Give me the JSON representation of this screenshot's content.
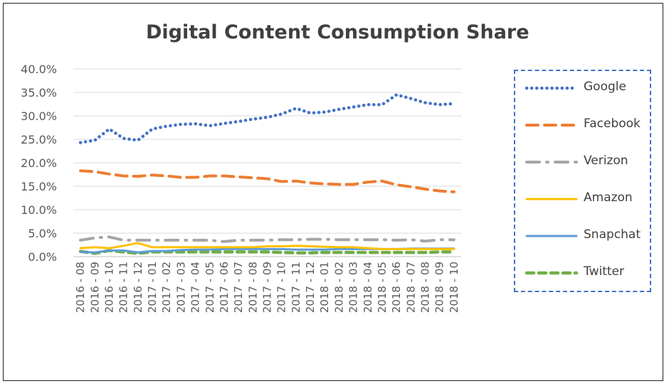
{
  "chart_data": {
    "type": "line",
    "title": "Digital Content Consumption Share",
    "xlabel": "",
    "ylabel": "",
    "ylim": [
      0,
      40
    ],
    "yticks": [
      "40.0%",
      "35.0%",
      "30.0%",
      "25.0%",
      "20.0%",
      "15.0%",
      "10.0%",
      "5.0%",
      "0.0%"
    ],
    "grid": true,
    "legend_position": "right",
    "categories": [
      "2016 - 08",
      "2016 - 09",
      "2016 - 10",
      "2016 - 11",
      "2016 - 12",
      "2017 - 01",
      "2017 - 02",
      "2017 - 03",
      "2017 - 04",
      "2017 - 05",
      "2017 - 06",
      "2017 - 07",
      "2017 - 08",
      "2017 - 09",
      "2017 - 10",
      "2017 - 11",
      "2017 - 12",
      "2018 - 01",
      "2018 - 02",
      "2018 - 03",
      "2018 - 04",
      "2018 - 05",
      "2018 - 06",
      "2018 - 07",
      "2018 - 08",
      "2018 - 09",
      "2018 - 10"
    ],
    "series": [
      {
        "name": "Google",
        "color": "#4472c4",
        "dash": "dot",
        "values": [
          24.3,
          24.8,
          27.2,
          25.2,
          24.8,
          27.2,
          27.8,
          28.2,
          28.3,
          27.9,
          28.4,
          28.8,
          29.3,
          29.7,
          30.4,
          31.6,
          30.6,
          30.8,
          31.4,
          31.9,
          32.4,
          32.4,
          34.5,
          33.7,
          32.8,
          32.4,
          32.6
        ]
      },
      {
        "name": "Facebook",
        "color": "#ed7d31",
        "dash": "longdash",
        "values": [
          18.3,
          18.1,
          17.6,
          17.2,
          17.1,
          17.4,
          17.2,
          16.9,
          16.9,
          17.2,
          17.2,
          17.0,
          16.8,
          16.6,
          16.0,
          16.1,
          15.7,
          15.5,
          15.4,
          15.4,
          15.9,
          16.1,
          15.3,
          14.9,
          14.4,
          14.0,
          13.8
        ]
      },
      {
        "name": "Verizon",
        "color": "#a5a5a5",
        "dash": "dashdot",
        "values": [
          3.5,
          4.0,
          4.2,
          3.5,
          3.5,
          3.5,
          3.5,
          3.5,
          3.5,
          3.5,
          3.2,
          3.5,
          3.5,
          3.5,
          3.6,
          3.6,
          3.7,
          3.7,
          3.6,
          3.6,
          3.6,
          3.6,
          3.5,
          3.6,
          3.3,
          3.6,
          3.6
        ]
      },
      {
        "name": "Amazon",
        "color": "#ffc000",
        "dash": "solid",
        "values": [
          1.8,
          2.0,
          1.8,
          2.3,
          2.9,
          2.0,
          2.0,
          2.0,
          2.0,
          2.0,
          2.0,
          2.0,
          2.0,
          2.2,
          2.2,
          2.3,
          2.2,
          2.1,
          2.0,
          2.0,
          1.8,
          1.6,
          1.6,
          1.6,
          1.6,
          1.6,
          1.6
        ]
      },
      {
        "name": "Snapchat",
        "color": "#5b9bd5",
        "dash": "solid",
        "values": [
          1.0,
          0.9,
          1.3,
          1.3,
          0.9,
          1.2,
          1.2,
          1.4,
          1.5,
          1.5,
          1.6,
          1.6,
          1.6,
          1.6,
          1.6,
          1.5,
          1.5,
          1.5,
          1.6,
          1.6,
          1.6,
          1.6,
          1.6,
          1.7,
          1.7,
          1.7,
          1.7
        ]
      },
      {
        "name": "Twitter",
        "color": "#70ad47",
        "dash": "dash",
        "values": [
          1.1,
          0.7,
          1.3,
          1.0,
          0.7,
          1.0,
          1.0,
          1.0,
          1.0,
          1.0,
          1.0,
          1.0,
          1.0,
          1.0,
          0.9,
          0.8,
          0.8,
          0.9,
          0.9,
          0.9,
          0.9,
          0.9,
          0.9,
          0.9,
          0.9,
          1.0,
          1.0
        ]
      }
    ]
  }
}
